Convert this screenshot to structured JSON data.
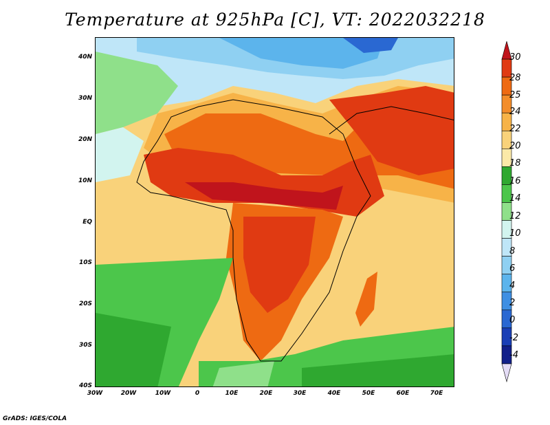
{
  "title": "Temperature at 925hPa [C], VT: 2022032218",
  "footer": "GrADS: IGES/COLA",
  "axes": {
    "lat_labels": [
      "40N",
      "30N",
      "20N",
      "10N",
      "EQ",
      "10S",
      "20S",
      "30S",
      "40S"
    ],
    "lon_labels": [
      "30W",
      "20W",
      "10W",
      "0",
      "10E",
      "20E",
      "30E",
      "40E",
      "50E",
      "60E",
      "70E"
    ]
  },
  "colorbar": {
    "labels": [
      "30",
      "28",
      "25",
      "24",
      "22",
      "20",
      "18",
      "16",
      "14",
      "12",
      "10",
      "8",
      "6",
      "4",
      "2",
      "0",
      "-2",
      "-4"
    ],
    "colors": [
      "#c0141c",
      "#e03a12",
      "#ee6a12",
      "#f38d2a",
      "#f7b348",
      "#f9d27a",
      "#fbe9a8",
      "#2fa830",
      "#4cc64b",
      "#8fe08a",
      "#d2f4ef",
      "#bfe6f8",
      "#8fd0f2",
      "#5cb4ec",
      "#3e8fe3",
      "#2a68d2",
      "#1a3fb6",
      "#12208a",
      "#e4dcf6"
    ]
  }
}
